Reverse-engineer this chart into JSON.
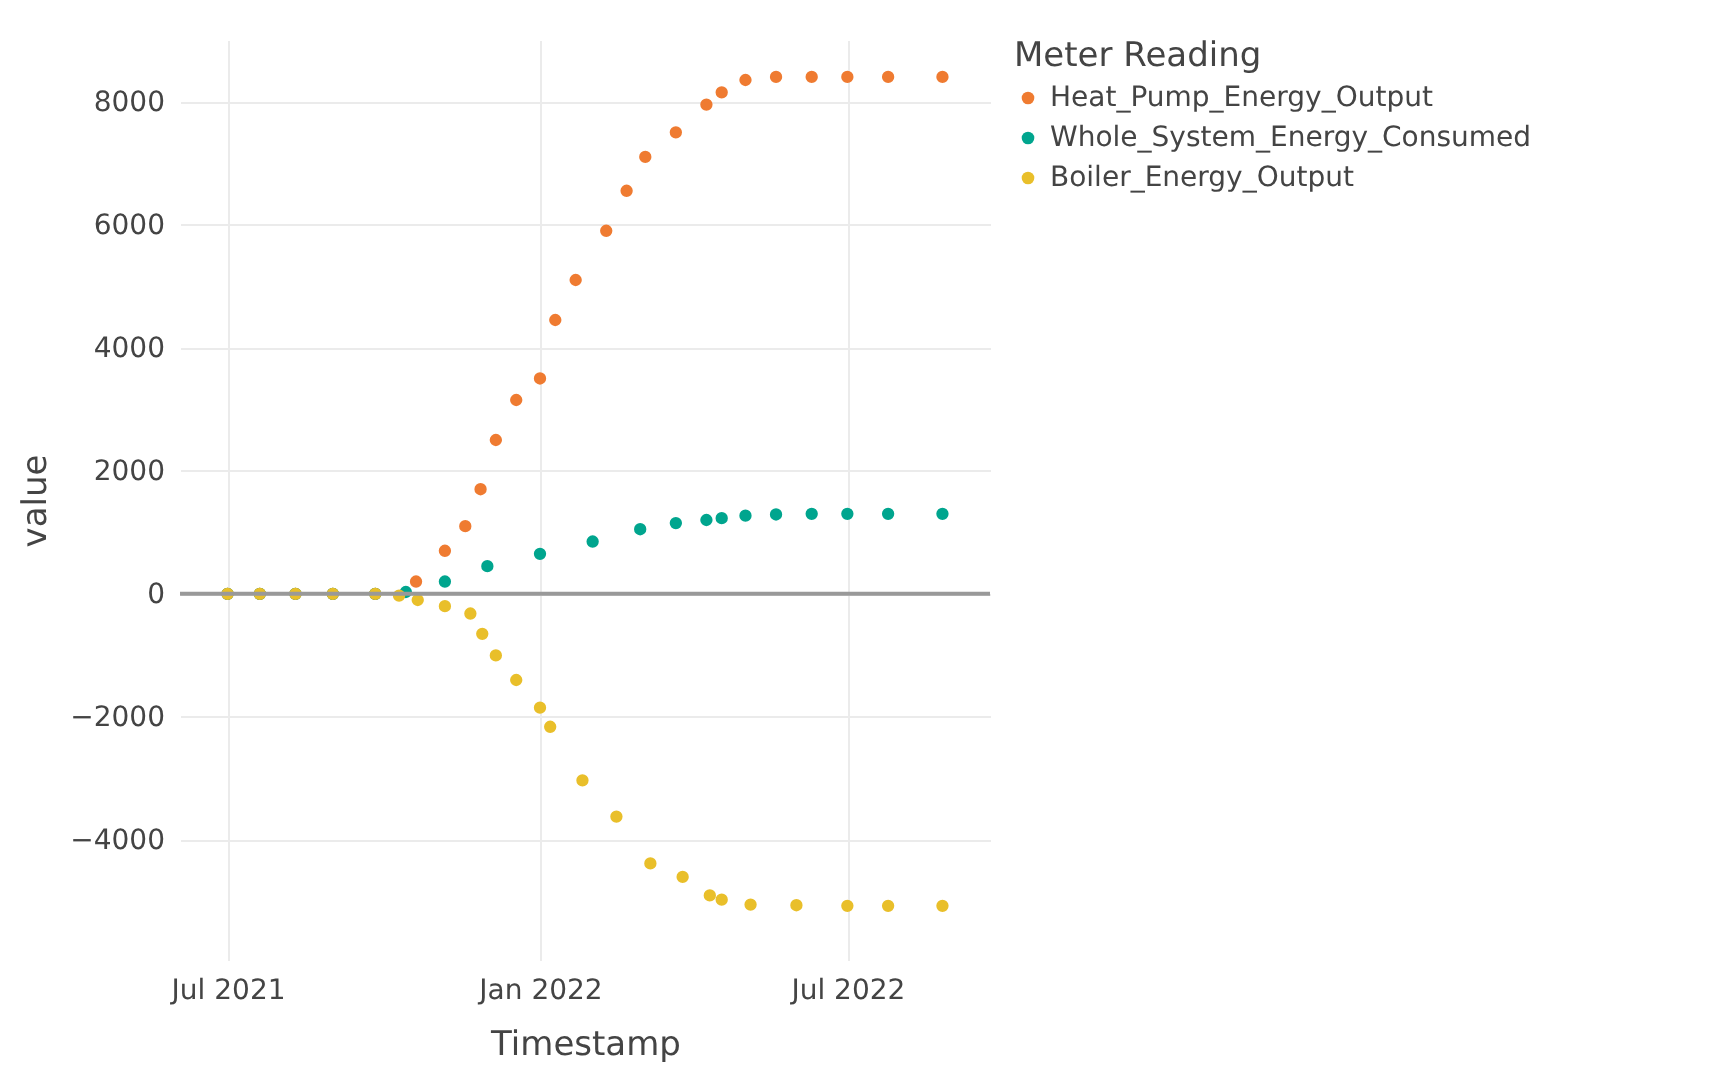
{
  "chart_data": {
    "type": "scatter",
    "xlabel": "Timestamp",
    "ylabel": "value",
    "legend_title": "Meter Reading",
    "legend": "top right",
    "grid": true,
    "marker": "circle",
    "xlim": [
      "2021-06-03",
      "2022-09-23"
    ],
    "ylim": [
      -5950,
      9000
    ],
    "xticks": [
      {
        "value": "2021-07-01",
        "label": "Jul 2021"
      },
      {
        "value": "2022-01-01",
        "label": "Jan 2022"
      },
      {
        "value": "2022-07-01",
        "label": "Jul 2022"
      }
    ],
    "yticks": [
      {
        "value": -4000,
        "label": "−4000"
      },
      {
        "value": -2000,
        "label": "−2000"
      },
      0,
      2000,
      4000,
      6000,
      8000
    ],
    "ref_lines": [
      {
        "axis": "y",
        "value": 0,
        "color": "#999999"
      }
    ],
    "series": [
      {
        "name": "Heat_Pump_Energy_Output",
        "color": "#ef7b31",
        "x": [
          "2021-07-01",
          "2021-07-20",
          "2021-08-10",
          "2021-09-01",
          "2021-09-26",
          "2021-10-20",
          "2021-11-06",
          "2021-11-18",
          "2021-11-27",
          "2021-12-06",
          "2021-12-18",
          "2022-01-01",
          "2022-01-10",
          "2022-01-22",
          "2022-02-09",
          "2022-02-21",
          "2022-03-04",
          "2022-03-22",
          "2022-04-09",
          "2022-04-18",
          "2022-05-02",
          "2022-05-20",
          "2022-06-10",
          "2022-07-01",
          "2022-07-25",
          "2022-08-26"
        ],
        "values": [
          0,
          0,
          0,
          0,
          0,
          200,
          700,
          1100,
          1700,
          2500,
          3150,
          3500,
          4450,
          5100,
          5900,
          6550,
          7100,
          7500,
          7950,
          8150,
          8350,
          8400,
          8400,
          8400,
          8400,
          8400
        ]
      },
      {
        "name": "Whole_System_Energy_Consumed",
        "color": "#00a58e",
        "x": [
          "2021-07-01",
          "2021-07-20",
          "2021-08-10",
          "2021-09-01",
          "2021-09-26",
          "2021-10-14",
          "2021-11-06",
          "2021-12-01",
          "2022-01-01",
          "2022-02-01",
          "2022-03-01",
          "2022-03-22",
          "2022-04-09",
          "2022-04-18",
          "2022-05-02",
          "2022-05-20",
          "2022-06-10",
          "2022-07-01",
          "2022-07-25",
          "2022-08-26"
        ],
        "values": [
          0,
          0,
          0,
          0,
          0,
          30,
          200,
          450,
          650,
          850,
          1050,
          1150,
          1200,
          1230,
          1270,
          1290,
          1300,
          1300,
          1300,
          1300
        ]
      },
      {
        "name": "Boiler_Energy_Output",
        "color": "#e9bf2a",
        "x": [
          "2021-07-01",
          "2021-07-20",
          "2021-08-10",
          "2021-09-01",
          "2021-09-26",
          "2021-10-10",
          "2021-10-21",
          "2021-11-06",
          "2021-11-21",
          "2021-11-28",
          "2021-12-06",
          "2021-12-18",
          "2022-01-01",
          "2022-01-07",
          "2022-01-26",
          "2022-02-15",
          "2022-03-07",
          "2022-03-26",
          "2022-04-11",
          "2022-04-18",
          "2022-05-05",
          "2022-06-01",
          "2022-07-01",
          "2022-07-25",
          "2022-08-26"
        ],
        "values": [
          0,
          0,
          0,
          0,
          0,
          -30,
          -100,
          -200,
          -320,
          -650,
          -1000,
          -1400,
          -1850,
          -2160,
          -3030,
          -3620,
          -4380,
          -4600,
          -4900,
          -4970,
          -5050,
          -5060,
          -5070,
          -5070,
          -5070
        ]
      }
    ]
  }
}
